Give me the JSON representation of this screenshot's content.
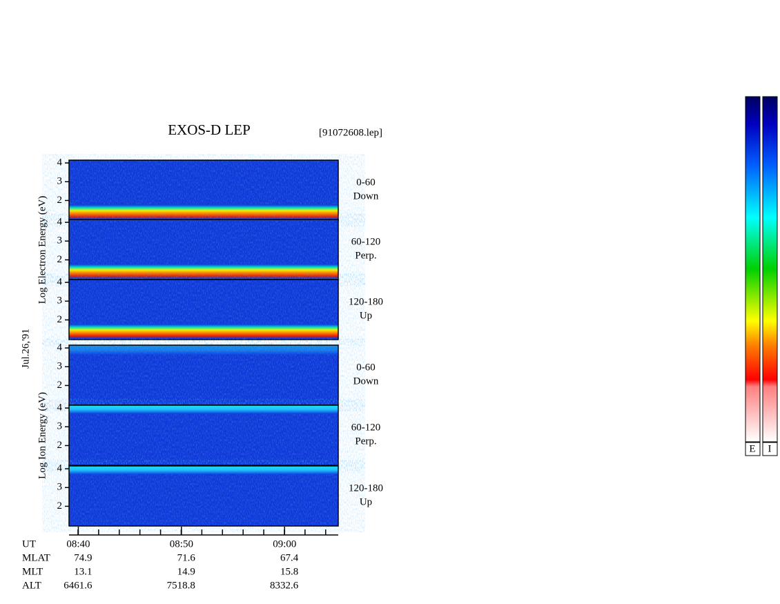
{
  "chart_data": {
    "type": "spectrogram",
    "title": "EXOS-D LEP",
    "file": "[91072608.lep]",
    "date": "Jul.26,'91",
    "groups": [
      {
        "label": "Log Electron Energy (eV)",
        "panels": [
          {
            "range": "0-60",
            "direction": "Down"
          },
          {
            "range": "60-120",
            "direction": "Perp."
          },
          {
            "range": "120-180",
            "direction": "Up"
          }
        ]
      },
      {
        "label": "Log Ion Energy (eV)",
        "panels": [
          {
            "range": "0-60",
            "direction": "Down"
          },
          {
            "range": "60-120",
            "direction": "Perp."
          },
          {
            "range": "120-180",
            "direction": "Up"
          }
        ]
      }
    ],
    "ylim": [
      0.95,
      4.15
    ],
    "yticks": [
      2,
      3,
      4
    ],
    "xlim": [
      519.1,
      545.2
    ],
    "xticks": [
      {
        "value": 520,
        "label": "08:40"
      },
      {
        "value": 530,
        "label": "08:50"
      },
      {
        "value": 540,
        "label": "09:00"
      }
    ],
    "xlabel": "UT",
    "ephemeris": [
      {
        "name": "MLAT",
        "values": [
          74.9,
          71.6,
          67.4
        ]
      },
      {
        "name": "MLT",
        "values": [
          13.1,
          14.9,
          15.8
        ]
      },
      {
        "name": "ALT",
        "values": [
          6461.6,
          7518.8,
          8332.6
        ]
      }
    ],
    "colorbar_labels": [
      "E",
      "I"
    ]
  }
}
